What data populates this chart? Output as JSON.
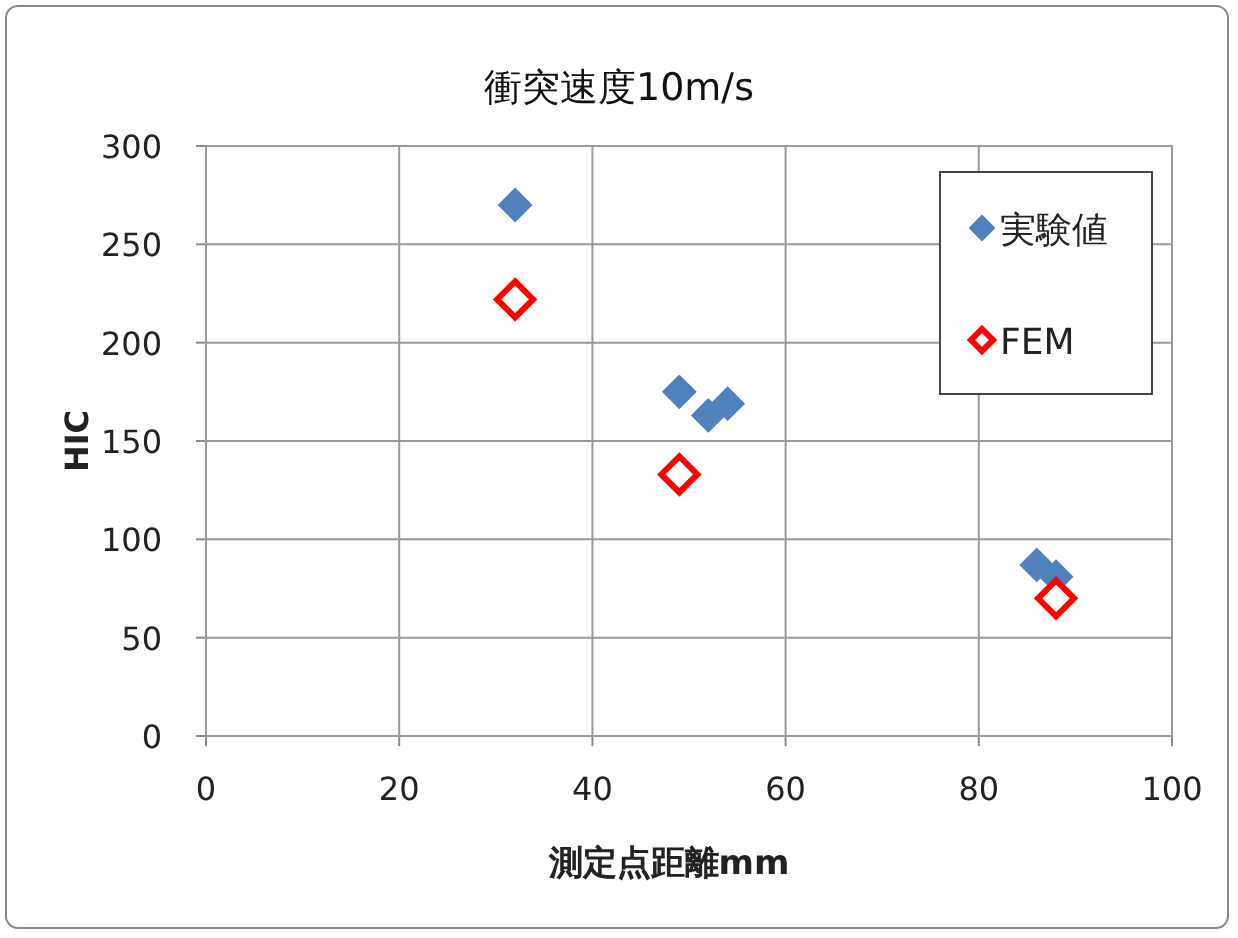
{
  "chart_data": {
    "type": "scatter",
    "title": "衝突速度10m/s",
    "xlabel": "測定点距離mm",
    "ylabel": "HIC",
    "xlim": [
      0,
      100
    ],
    "xticks": [
      0,
      20,
      40,
      60,
      80,
      100
    ],
    "ylim": [
      0,
      300
    ],
    "yticks": [
      0,
      50,
      100,
      150,
      200,
      250,
      300
    ],
    "grid": true,
    "legend": "top right",
    "series": [
      {
        "name": "実験値",
        "color": "#4f81bd",
        "marker": "diamond",
        "x": [
          32,
          49,
          52,
          54,
          86,
          88
        ],
        "values": [
          270,
          175,
          163,
          169,
          87,
          81
        ]
      },
      {
        "name": "FEM",
        "color": "#ff0000",
        "marker": "diamond",
        "x": [
          32,
          49,
          88
        ],
        "values": [
          222,
          133,
          70
        ]
      }
    ]
  }
}
